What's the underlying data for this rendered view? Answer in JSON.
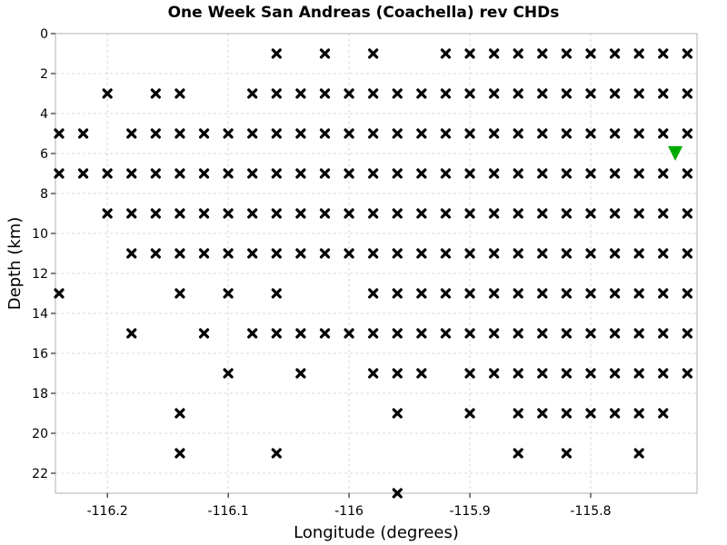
{
  "chart_data": {
    "type": "scatter",
    "title": "One Week San Andreas (Coachella) rev CHDs",
    "xlabel": "Longitude (degrees)",
    "ylabel": "Depth (km)",
    "xlim": [
      -116.243,
      -115.712
    ],
    "ylim": [
      0,
      23
    ],
    "y_inverted": true,
    "grid": true,
    "x_ticks": [
      -116.2,
      -116.1,
      -116.0,
      -115.9,
      -115.8
    ],
    "x_tick_labels": [
      "-116.2",
      "-116.1",
      "-116",
      "-115.9",
      "-115.8"
    ],
    "y_ticks": [
      0,
      2,
      4,
      6,
      8,
      10,
      12,
      14,
      16,
      18,
      20,
      22
    ],
    "y_tick_labels": [
      "0",
      "2",
      "4",
      "6",
      "8",
      "10",
      "12",
      "14",
      "16",
      "18",
      "20",
      "22"
    ],
    "series": [
      {
        "marker": "x",
        "color": "#000000",
        "rows": [
          {
            "depth": 1,
            "lons": [
              -116.06,
              -116.02,
              -115.98,
              -115.92,
              -115.9,
              -115.88,
              -115.86,
              -115.84,
              -115.82,
              -115.8,
              -115.78,
              -115.76,
              -115.74,
              -115.72
            ]
          },
          {
            "depth": 3,
            "lons": [
              -116.2,
              -116.16,
              -116.14,
              -116.08,
              -116.06,
              -116.04,
              -116.02,
              -116.0,
              -115.98,
              -115.96,
              -115.94,
              -115.92,
              -115.9,
              -115.88,
              -115.86,
              -115.84,
              -115.82,
              -115.8,
              -115.78,
              -115.76,
              -115.74,
              -115.72
            ]
          },
          {
            "depth": 5,
            "lons": [
              -116.24,
              -116.22,
              -116.18,
              -116.16,
              -116.14,
              -116.12,
              -116.1,
              -116.08,
              -116.06,
              -116.04,
              -116.02,
              -116.0,
              -115.98,
              -115.96,
              -115.94,
              -115.92,
              -115.9,
              -115.88,
              -115.86,
              -115.84,
              -115.82,
              -115.8,
              -115.78,
              -115.76,
              -115.74,
              -115.72
            ]
          },
          {
            "depth": 7,
            "lons": [
              -116.24,
              -116.22,
              -116.2,
              -116.18,
              -116.16,
              -116.14,
              -116.12,
              -116.1,
              -116.08,
              -116.06,
              -116.04,
              -116.02,
              -116.0,
              -115.98,
              -115.96,
              -115.94,
              -115.92,
              -115.9,
              -115.88,
              -115.86,
              -115.84,
              -115.82,
              -115.8,
              -115.78,
              -115.76,
              -115.74,
              -115.72
            ]
          },
          {
            "depth": 9,
            "lons": [
              -116.2,
              -116.18,
              -116.16,
              -116.14,
              -116.12,
              -116.1,
              -116.08,
              -116.06,
              -116.04,
              -116.02,
              -116.0,
              -115.98,
              -115.96,
              -115.94,
              -115.92,
              -115.9,
              -115.88,
              -115.86,
              -115.84,
              -115.82,
              -115.8,
              -115.78,
              -115.76,
              -115.74,
              -115.72
            ]
          },
          {
            "depth": 11,
            "lons": [
              -116.18,
              -116.16,
              -116.14,
              -116.12,
              -116.1,
              -116.08,
              -116.06,
              -116.04,
              -116.02,
              -116.0,
              -115.98,
              -115.96,
              -115.94,
              -115.92,
              -115.9,
              -115.88,
              -115.86,
              -115.84,
              -115.82,
              -115.8,
              -115.78,
              -115.76,
              -115.74,
              -115.72
            ]
          },
          {
            "depth": 13,
            "lons": [
              -116.24,
              -116.14,
              -116.1,
              -116.06,
              -115.98,
              -115.96,
              -115.94,
              -115.92,
              -115.9,
              -115.88,
              -115.86,
              -115.84,
              -115.82,
              -115.8,
              -115.78,
              -115.76,
              -115.74,
              -115.72
            ]
          },
          {
            "depth": 15,
            "lons": [
              -116.18,
              -116.12,
              -116.08,
              -116.06,
              -116.04,
              -116.02,
              -116.0,
              -115.98,
              -115.96,
              -115.94,
              -115.92,
              -115.9,
              -115.88,
              -115.86,
              -115.84,
              -115.82,
              -115.8,
              -115.78,
              -115.76,
              -115.74,
              -115.72
            ]
          },
          {
            "depth": 17,
            "lons": [
              -116.1,
              -116.04,
              -115.98,
              -115.96,
              -115.94,
              -115.9,
              -115.88,
              -115.86,
              -115.84,
              -115.82,
              -115.8,
              -115.78,
              -115.76,
              -115.74,
              -115.72
            ]
          },
          {
            "depth": 19,
            "lons": [
              -116.14,
              -115.96,
              -115.9,
              -115.86,
              -115.84,
              -115.82,
              -115.8,
              -115.78,
              -115.76,
              -115.74
            ]
          },
          {
            "depth": 21,
            "lons": [
              -116.14,
              -116.06,
              -115.86,
              -115.82,
              -115.76
            ]
          },
          {
            "depth": 23,
            "lons": [
              -115.96
            ]
          }
        ]
      },
      {
        "marker": "triangle-down",
        "color": "#00aa00",
        "points": [
          {
            "lon": -115.73,
            "depth": 6
          }
        ]
      }
    ]
  }
}
